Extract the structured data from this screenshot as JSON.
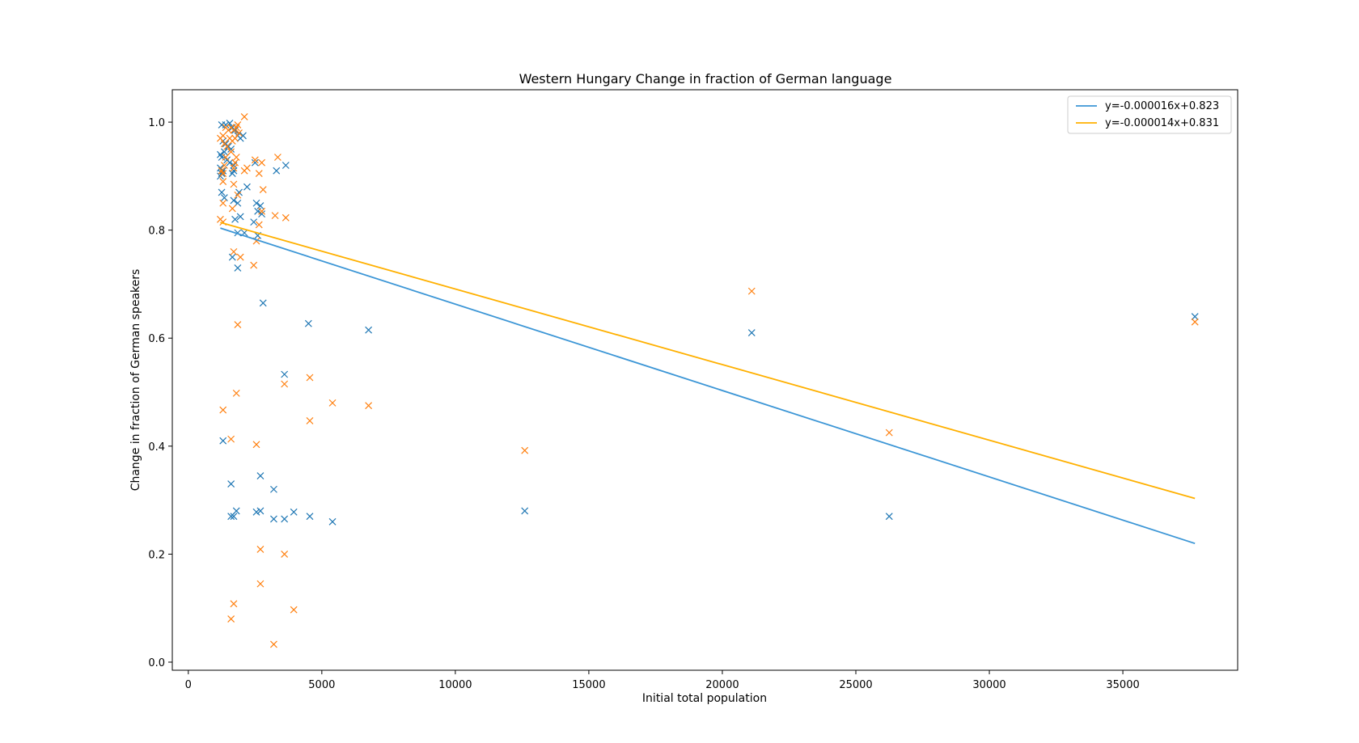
{
  "chart_data": {
    "type": "scatter",
    "title": "Western Hungary Change in fraction of German language",
    "xlabel": "Initial total population",
    "ylabel": "Change in fraction of German speakers",
    "xlim": [
      -600,
      39300
    ],
    "ylim": [
      -0.015,
      1.06
    ],
    "xticks": [
      0,
      5000,
      10000,
      15000,
      20000,
      25000,
      30000,
      35000
    ],
    "yticks": [
      0.0,
      0.2,
      0.4,
      0.6,
      0.8,
      1.0
    ],
    "xtick_labels": [
      "0",
      "5000",
      "10000",
      "15000",
      "20000",
      "25000",
      "30000",
      "35000"
    ],
    "ytick_labels": [
      "0.0",
      "0.2",
      "0.4",
      "0.6",
      "0.8",
      "1.0"
    ],
    "grid": false,
    "legend_position": "top-right",
    "series": [
      {
        "color": "#1f77b4",
        "marker": "x",
        "points": [
          [
            1250,
            0.995
          ],
          [
            1400,
            0.995
          ],
          [
            1550,
            0.998
          ],
          [
            1650,
            0.99
          ],
          [
            1750,
            0.985
          ],
          [
            1850,
            0.975
          ],
          [
            1950,
            0.97
          ],
          [
            2050,
            0.975
          ],
          [
            1300,
            0.965
          ],
          [
            1400,
            0.96
          ],
          [
            1500,
            0.955
          ],
          [
            1600,
            0.95
          ],
          [
            1350,
            0.945
          ],
          [
            1200,
            0.94
          ],
          [
            1250,
            0.935
          ],
          [
            1450,
            0.93
          ],
          [
            1550,
            0.925
          ],
          [
            1700,
            0.92
          ],
          [
            1200,
            0.915
          ],
          [
            1300,
            0.91
          ],
          [
            1250,
            0.905
          ],
          [
            1650,
            0.905
          ],
          [
            1700,
            0.91
          ],
          [
            1200,
            0.9
          ],
          [
            1250,
            0.87
          ],
          [
            1350,
            0.86
          ],
          [
            1700,
            0.855
          ],
          [
            1850,
            0.85
          ],
          [
            1900,
            0.87
          ],
          [
            2200,
            0.88
          ],
          [
            2500,
            0.925
          ],
          [
            3300,
            0.91
          ],
          [
            3650,
            0.92
          ],
          [
            2550,
            0.85
          ],
          [
            2700,
            0.845
          ],
          [
            2600,
            0.835
          ],
          [
            2750,
            0.83
          ],
          [
            2450,
            0.815
          ],
          [
            1950,
            0.825
          ],
          [
            1750,
            0.82
          ],
          [
            1850,
            0.795
          ],
          [
            2100,
            0.795
          ],
          [
            2600,
            0.79
          ],
          [
            1650,
            0.75
          ],
          [
            1850,
            0.73
          ],
          [
            2800,
            0.665
          ],
          [
            4500,
            0.627
          ],
          [
            6750,
            0.615
          ],
          [
            21100,
            0.61
          ],
          [
            37700,
            0.64
          ],
          [
            3600,
            0.533
          ],
          [
            1300,
            0.41
          ],
          [
            1600,
            0.33
          ],
          [
            2700,
            0.345
          ],
          [
            3200,
            0.32
          ],
          [
            1800,
            0.28
          ],
          [
            1600,
            0.27
          ],
          [
            1700,
            0.27
          ],
          [
            2550,
            0.278
          ],
          [
            2700,
            0.28
          ],
          [
            3200,
            0.265
          ],
          [
            3600,
            0.265
          ],
          [
            3950,
            0.278
          ],
          [
            4550,
            0.27
          ],
          [
            5400,
            0.26
          ],
          [
            12600,
            0.28
          ],
          [
            26250,
            0.27
          ]
        ]
      },
      {
        "color": "#ff7f0e",
        "marker": "x",
        "points": [
          [
            2100,
            1.01
          ],
          [
            1400,
            0.99
          ],
          [
            1500,
            0.985
          ],
          [
            1600,
            0.99
          ],
          [
            1700,
            0.985
          ],
          [
            1800,
            0.99
          ],
          [
            1850,
            0.995
          ],
          [
            1900,
            0.98
          ],
          [
            1300,
            0.975
          ],
          [
            1200,
            0.97
          ],
          [
            1550,
            0.97
          ],
          [
            1650,
            0.965
          ],
          [
            1750,
            0.97
          ],
          [
            1350,
            0.96
          ],
          [
            1450,
            0.955
          ],
          [
            1600,
            0.945
          ],
          [
            1400,
            0.935
          ],
          [
            1800,
            0.935
          ],
          [
            1750,
            0.925
          ],
          [
            1350,
            0.92
          ],
          [
            1700,
            0.915
          ],
          [
            1250,
            0.91
          ],
          [
            1300,
            0.905
          ],
          [
            2200,
            0.915
          ],
          [
            2100,
            0.91
          ],
          [
            2500,
            0.93
          ],
          [
            2650,
            0.905
          ],
          [
            2750,
            0.925
          ],
          [
            3350,
            0.935
          ],
          [
            1300,
            0.89
          ],
          [
            1700,
            0.885
          ],
          [
            1850,
            0.865
          ],
          [
            2800,
            0.875
          ],
          [
            1300,
            0.85
          ],
          [
            1650,
            0.84
          ],
          [
            2750,
            0.835
          ],
          [
            3250,
            0.827
          ],
          [
            3650,
            0.823
          ],
          [
            1200,
            0.82
          ],
          [
            1300,
            0.815
          ],
          [
            2650,
            0.81
          ],
          [
            2550,
            0.78
          ],
          [
            1700,
            0.76
          ],
          [
            1950,
            0.75
          ],
          [
            2450,
            0.735
          ],
          [
            21100,
            0.687
          ],
          [
            37700,
            0.63
          ],
          [
            1850,
            0.625
          ],
          [
            3600,
            0.515
          ],
          [
            4550,
            0.527
          ],
          [
            5400,
            0.48
          ],
          [
            6750,
            0.475
          ],
          [
            1800,
            0.498
          ],
          [
            4550,
            0.447
          ],
          [
            1300,
            0.467
          ],
          [
            1600,
            0.413
          ],
          [
            2550,
            0.403
          ],
          [
            12600,
            0.392
          ],
          [
            26250,
            0.425
          ],
          [
            2700,
            0.209
          ],
          [
            3600,
            0.2
          ],
          [
            2700,
            0.145
          ],
          [
            1700,
            0.108
          ],
          [
            3950,
            0.097
          ],
          [
            1600,
            0.08
          ],
          [
            3200,
            0.033
          ]
        ]
      }
    ],
    "fit_lines": [
      {
        "label": "y=-0.000016x+0.823",
        "slope": -1.6e-05,
        "intercept": 0.823,
        "x_range": [
          1200,
          37700
        ],
        "color": "#3c96d6"
      },
      {
        "label": "y=-0.000014x+0.831",
        "slope": -1.4e-05,
        "intercept": 0.831,
        "x_range": [
          1200,
          37700
        ],
        "color": "#ffb000"
      }
    ]
  }
}
